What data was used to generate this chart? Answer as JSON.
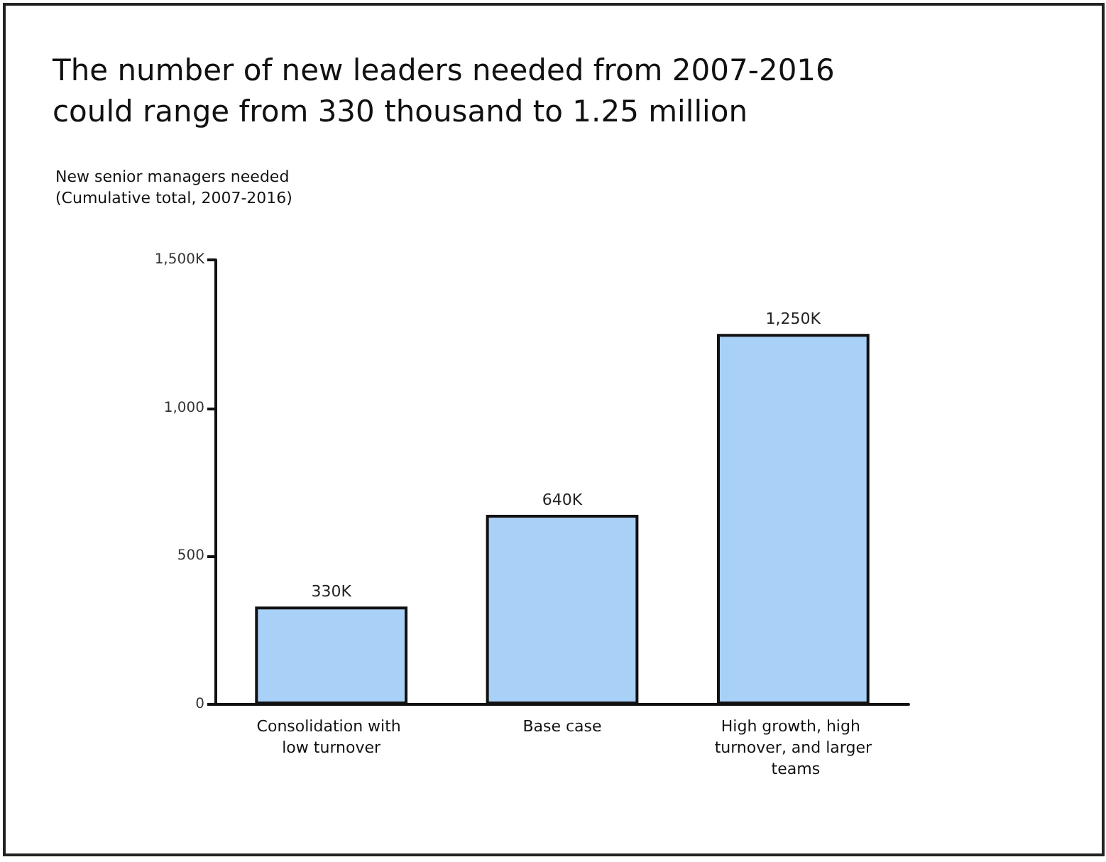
{
  "chart_data": {
    "type": "bar",
    "title": "The number of new leaders needed from 2007-2016 could range from 330 thousand to 1.25 million",
    "ylabel": "New senior managers needed (Cumulative total, 2007-2016)",
    "categories": [
      "Consolidation with low turnover",
      "Base case",
      "High growth, high turnover, and larger teams"
    ],
    "values": [
      330,
      640,
      1250
    ],
    "value_labels": [
      "330K",
      "640K",
      "1,250K"
    ],
    "color": "#a9d0f7",
    "ylim": [
      0,
      1500
    ],
    "yticks": [
      {
        "value": 0,
        "label": "0"
      },
      {
        "value": 500,
        "label": "500"
      },
      {
        "value": 1000,
        "label": "1,000"
      },
      {
        "value": 1500,
        "label": "1,500K"
      }
    ],
    "grid": false
  }
}
